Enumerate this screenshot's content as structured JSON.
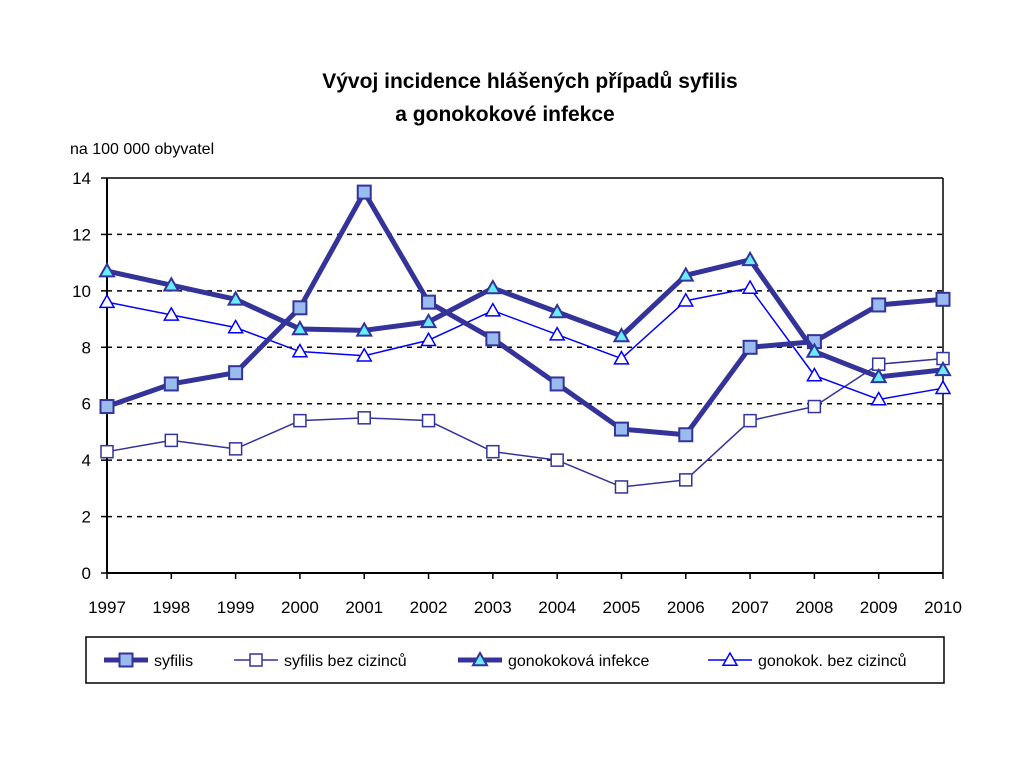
{
  "chart_data": {
    "type": "line",
    "title": [
      "Vývoj incidence hlášených případů syfilis",
      "a gonokokové infekce"
    ],
    "ylabel": "na 100 000 obyvatel",
    "xlabel": "",
    "ylim": [
      0,
      14
    ],
    "yticks": [
      0,
      2,
      4,
      6,
      8,
      10,
      12,
      14
    ],
    "grid": "horizontal dashed",
    "legend_position": "bottom",
    "categories": [
      "1997",
      "1998",
      "1999",
      "2000",
      "2001",
      "2002",
      "2003",
      "2004",
      "2005",
      "2006",
      "2007",
      "2008",
      "2009",
      "2010"
    ],
    "series": [
      {
        "name": "syfilis",
        "color": "#333399",
        "marker": "square",
        "marker_fill": "#99bbee",
        "width": 5,
        "values": [
          5.9,
          6.7,
          7.1,
          9.4,
          13.5,
          9.6,
          8.3,
          6.7,
          5.1,
          4.9,
          8.0,
          8.2,
          9.5,
          9.7
        ]
      },
      {
        "name": "syfilis bez cizinců",
        "color": "#333399",
        "marker": "square",
        "marker_fill": "#ffffff",
        "width": 1.5,
        "values": [
          4.3,
          4.7,
          4.4,
          5.4,
          5.5,
          5.4,
          4.3,
          4.0,
          3.05,
          3.3,
          5.4,
          5.9,
          7.4,
          7.6
        ]
      },
      {
        "name": "gonokoková infekce",
        "color": "#333399",
        "marker": "triangle",
        "marker_fill": "#66eeff",
        "width": 5,
        "values": [
          10.7,
          10.2,
          9.7,
          8.65,
          8.6,
          8.9,
          10.1,
          9.25,
          8.4,
          10.55,
          11.1,
          7.85,
          6.95,
          7.2
        ]
      },
      {
        "name": "gonokok. bez cizinců",
        "color": "#0000ff",
        "marker": "triangle",
        "marker_fill": "#ffffff",
        "width": 1.5,
        "values": [
          9.6,
          9.15,
          8.7,
          7.85,
          7.7,
          8.25,
          9.3,
          8.45,
          7.6,
          9.65,
          10.1,
          7.0,
          6.15,
          6.55
        ]
      }
    ]
  }
}
